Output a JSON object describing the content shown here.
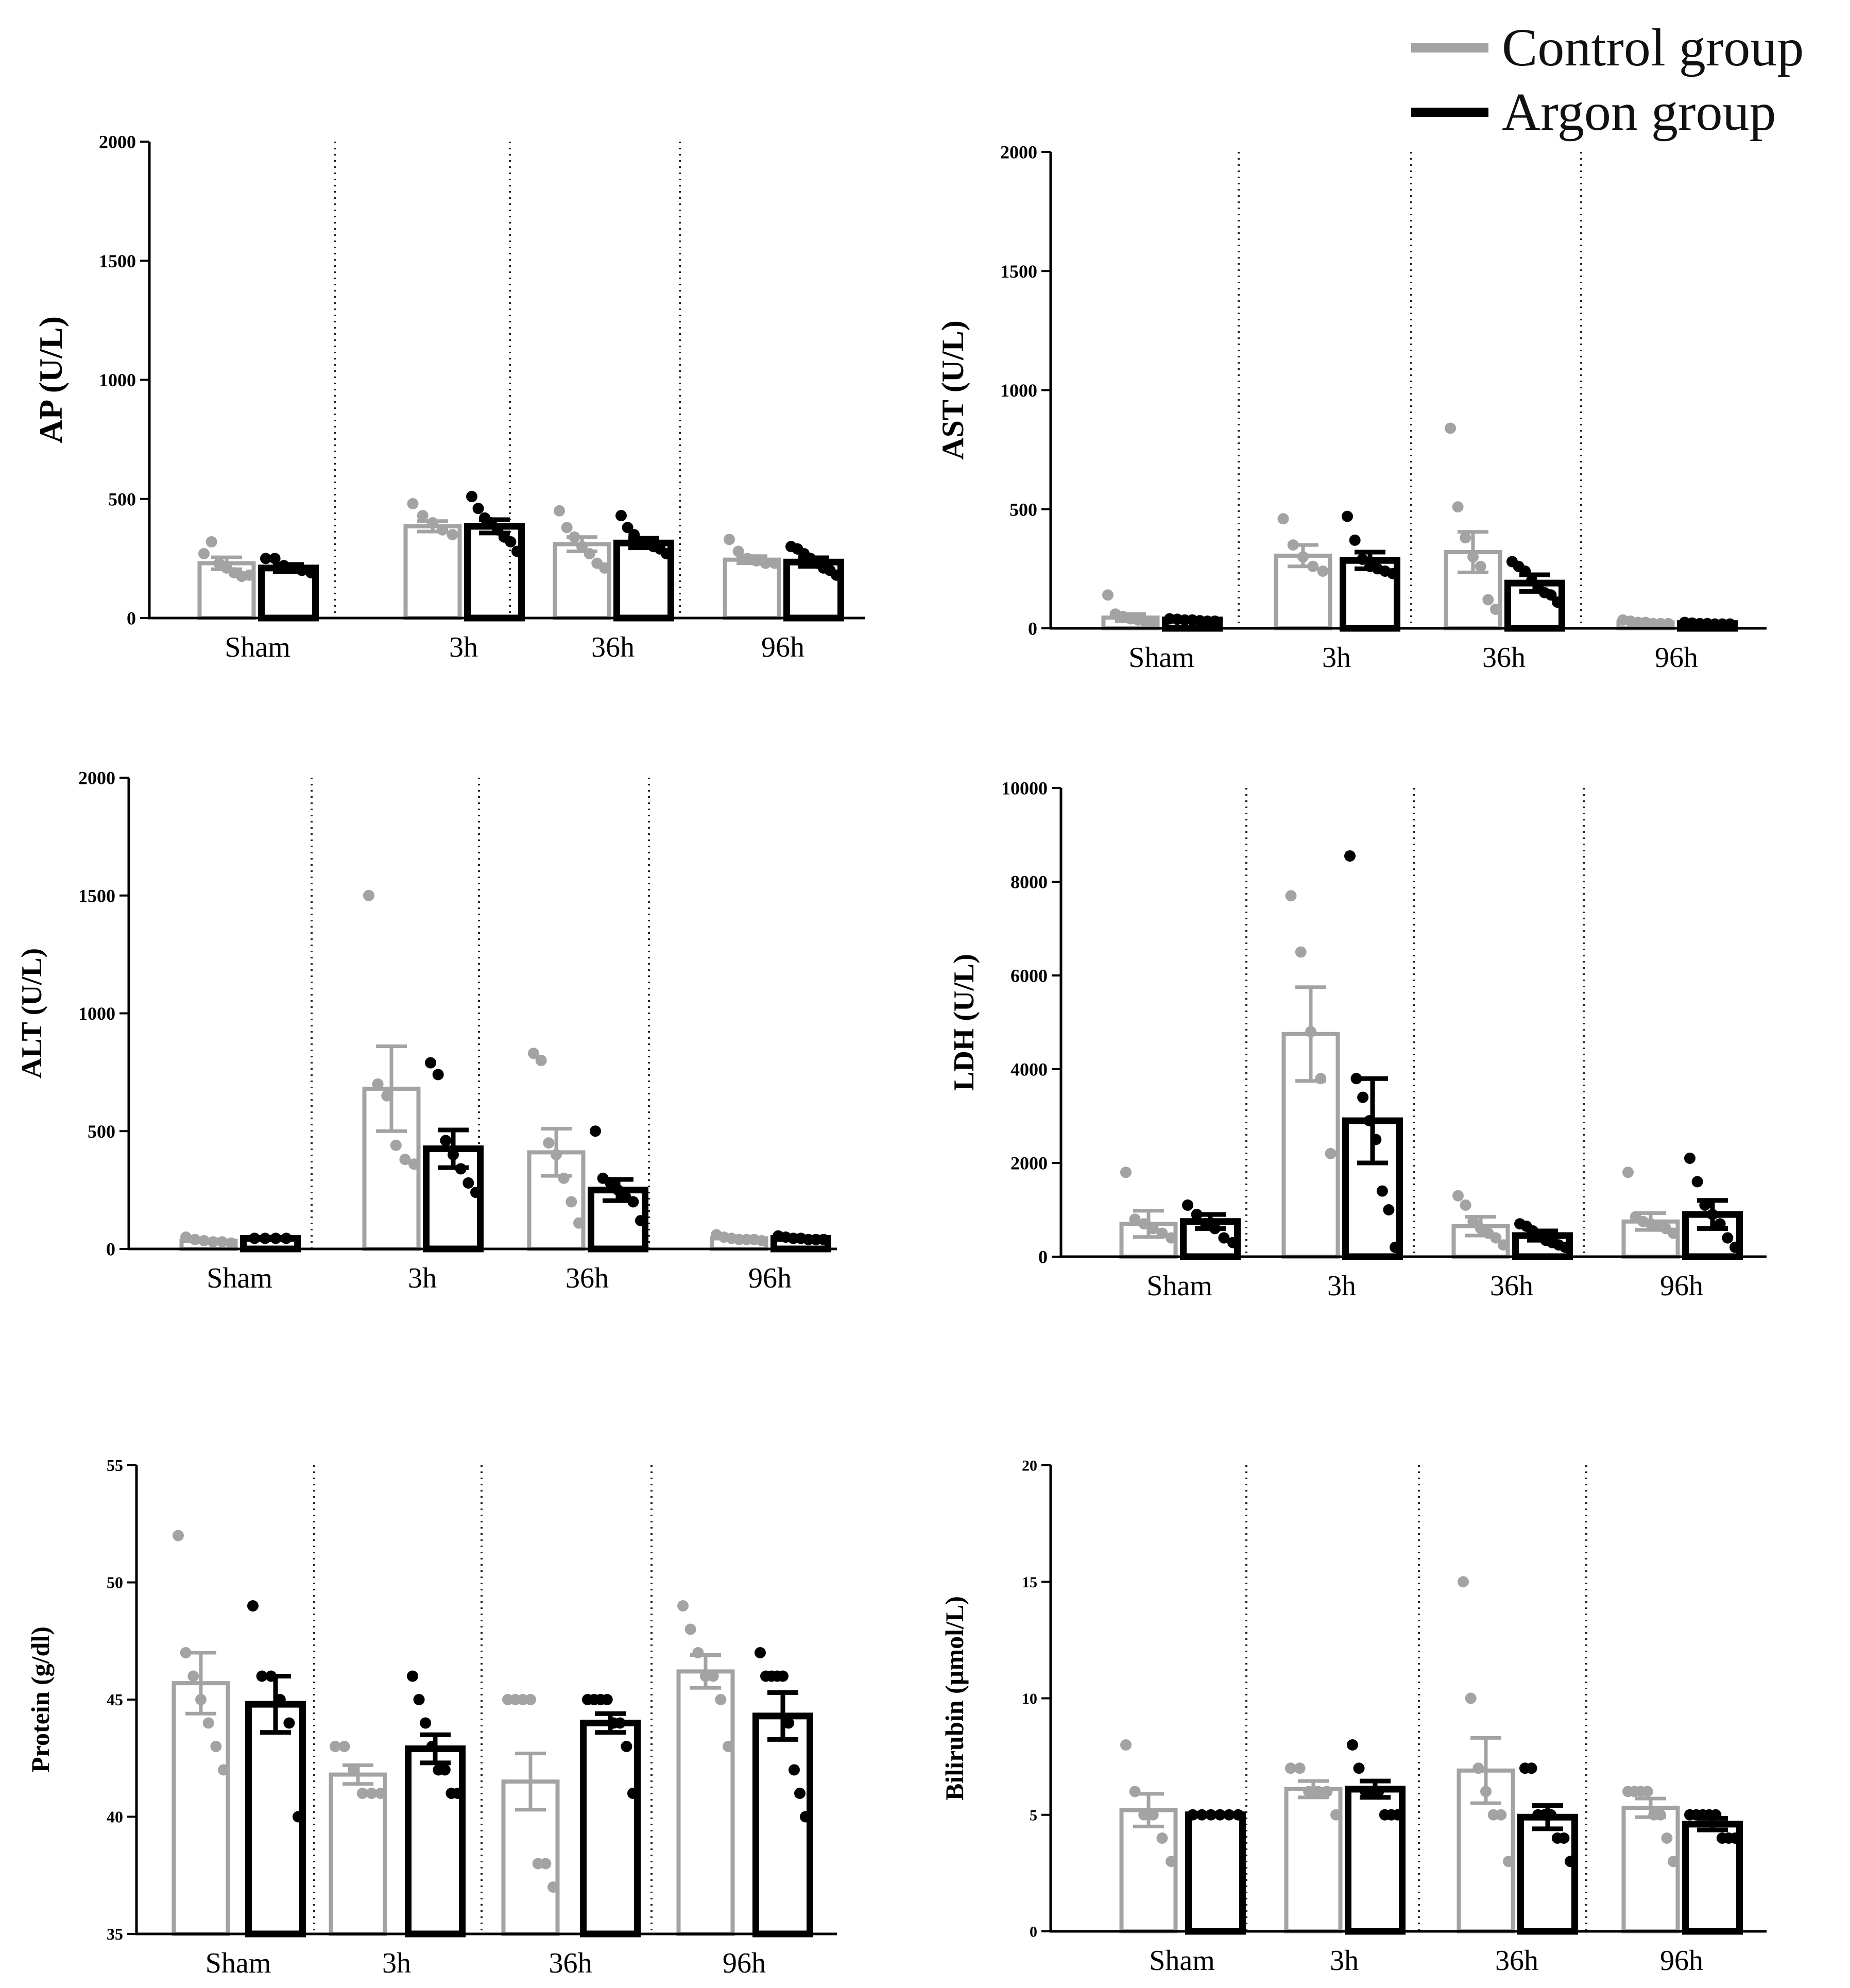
{
  "colors": {
    "control": "#a3a3a3",
    "argon": "#000000"
  },
  "legend": {
    "items": [
      {
        "label": "Control group",
        "color": "#a3a3a3"
      },
      {
        "label": "Argon group",
        "color": "#000000"
      }
    ]
  },
  "chart_data": [
    {
      "type": "bar",
      "ylabel": "AP (U/L)",
      "ylim": [
        0,
        2000
      ],
      "yticks": [
        0,
        500,
        1000,
        1500,
        2000
      ],
      "categories": [
        "Sham",
        "3h",
        "36h",
        "96h"
      ],
      "series": [
        {
          "name": "Control group",
          "values": [
            230,
            385,
            310,
            245
          ],
          "sem": [
            25,
            22,
            30,
            15
          ],
          "points": [
            [
              270,
              320,
              230,
              210,
              190,
              175,
              180
            ],
            [
              480,
              430,
              400,
              370,
              350
            ],
            [
              450,
              380,
              340,
              300,
              270,
              230,
              210
            ],
            [
              330,
              280,
              250,
              240,
              230,
              230
            ]
          ]
        },
        {
          "name": "Argon group",
          "values": [
            210,
            385,
            315,
            235
          ],
          "sem": [
            15,
            28,
            20,
            18
          ],
          "points": [
            [
              250,
              250,
              220,
              210,
              200,
              190
            ],
            [
              510,
              460,
              420,
              400,
              370,
              340,
              320,
              280
            ],
            [
              430,
              380,
              350,
              320,
              310,
              300,
              290,
              270
            ],
            [
              300,
              290,
              270,
              250,
              230,
              210,
              200,
              180
            ]
          ]
        }
      ]
    },
    {
      "type": "bar",
      "ylabel": "AST (U/L)",
      "ylim": [
        0,
        2000
      ],
      "yticks": [
        0,
        500,
        1000,
        1500,
        2000
      ],
      "categories": [
        "Sham",
        "3h",
        "36h",
        "96h"
      ],
      "series": [
        {
          "name": "Control group",
          "values": [
            45,
            305,
            320,
            25
          ],
          "sem": [
            15,
            45,
            85,
            4
          ],
          "points": [
            [
              140,
              60,
              50,
              40,
              35,
              25,
              20
            ],
            [
              460,
              350,
              300,
              260,
              240
            ],
            [
              840,
              510,
              380,
              300,
              260,
              120,
              80
            ],
            [
              35,
              30,
              25,
              25,
              20,
              20,
              20
            ]
          ]
        },
        {
          "name": "Argon group",
          "values": [
            35,
            285,
            190,
            20
          ],
          "sem": [
            3,
            35,
            35,
            3
          ],
          "points": [
            [
              40,
              38,
              35,
              35,
              32,
              30,
              30
            ],
            [
              470,
              370,
              290,
              260,
              250,
              240,
              230
            ],
            [
              280,
              260,
              240,
              200,
              180,
              150,
              140,
              110
            ],
            [
              25,
              22,
              20,
              20,
              18,
              18,
              18
            ]
          ]
        }
      ]
    },
    {
      "type": "bar",
      "ylabel": "ALT (U/L)",
      "ylim": [
        0,
        2000
      ],
      "yticks": [
        0,
        500,
        1000,
        1500,
        2000
      ],
      "categories": [
        "Sham",
        "3h",
        "36h",
        "96h"
      ],
      "series": [
        {
          "name": "Control group",
          "values": [
            35,
            680,
            410,
            45
          ],
          "sem": [
            6,
            180,
            100,
            6
          ],
          "points": [
            [
              50,
              40,
              35,
              30,
              30,
              25
            ],
            [
              1500,
              700,
              650,
              440,
              380,
              360
            ],
            [
              830,
              800,
              450,
              400,
              300,
              200,
              110
            ],
            [
              60,
              50,
              45,
              40,
              40,
              40,
              35
            ]
          ]
        },
        {
          "name": "Argon group",
          "values": [
            45,
            425,
            250,
            45
          ],
          "sem": [
            2,
            80,
            45,
            4
          ],
          "points": [
            [
              45,
              45,
              45,
              45
            ],
            [
              790,
              740,
              460,
              400,
              340,
              280,
              240
            ],
            [
              500,
              300,
              280,
              250,
              220,
              200,
              120
            ],
            [
              55,
              50,
              45,
              45,
              40,
              40,
              40
            ]
          ]
        }
      ]
    },
    {
      "type": "bar",
      "ylabel": "LDH (U/L)",
      "ylim": [
        0,
        10000
      ],
      "yticks": [
        0,
        2000,
        4000,
        6000,
        8000,
        10000
      ],
      "categories": [
        "Sham",
        "3h",
        "36h",
        "96h"
      ],
      "series": [
        {
          "name": "Control group",
          "values": [
            700,
            4750,
            650,
            750
          ],
          "sem": [
            280,
            1000,
            200,
            180
          ],
          "points": [
            [
              1800,
              800,
              700,
              600,
              500,
              400
            ],
            [
              7700,
              6500,
              4800,
              3800,
              2200
            ],
            [
              1300,
              1100,
              750,
              600,
              500,
              400,
              250
            ],
            [
              1800,
              850,
              750,
              700,
              650,
              600,
              500
            ]
          ]
        },
        {
          "name": "Argon group",
          "values": [
            750,
            2900,
            450,
            900
          ],
          "sem": [
            150,
            900,
            100,
            300
          ],
          "points": [
            [
              1100,
              900,
              700,
              600,
              400,
              300
            ],
            [
              8550,
              3800,
              3400,
              2900,
              2500,
              1400,
              1000,
              200
            ],
            [
              700,
              650,
              550,
              450,
              350,
              300,
              250,
              200
            ],
            [
              2100,
              1600,
              1100,
              900,
              700,
              400,
              200
            ]
          ]
        }
      ]
    },
    {
      "type": "bar",
      "ylabel": "Protein (g/dl)",
      "ylim": [
        35,
        55
      ],
      "yticks": [
        35,
        40,
        45,
        50,
        55
      ],
      "categories": [
        "Sham",
        "3h",
        "36h",
        "96h"
      ],
      "series": [
        {
          "name": "Control group",
          "values": [
            45.7,
            41.8,
            41.5,
            46.2
          ],
          "sem": [
            1.3,
            0.4,
            1.2,
            0.7
          ],
          "points": [
            [
              52,
              47,
              46,
              45,
              44,
              43,
              42
            ],
            [
              43,
              43,
              42,
              41,
              41,
              41
            ],
            [
              45,
              45,
              45,
              45,
              38,
              38,
              37
            ],
            [
              49,
              48,
              47,
              46,
              46,
              45,
              43
            ]
          ]
        },
        {
          "name": "Argon group",
          "values": [
            44.8,
            42.9,
            44.0,
            44.3
          ],
          "sem": [
            1.2,
            0.6,
            0.4,
            1.0
          ],
          "points": [
            [
              49,
              46,
              46,
              45,
              44,
              40
            ],
            [
              46,
              45,
              44,
              43,
              42,
              42,
              41,
              41
            ],
            [
              45,
              45,
              45,
              45,
              44,
              44,
              43,
              41
            ],
            [
              47,
              46,
              46,
              46,
              46,
              44,
              42,
              41,
              40
            ]
          ]
        }
      ]
    },
    {
      "type": "bar",
      "ylabel": "Bilirubin (µmol/L)",
      "ylim": [
        0,
        20
      ],
      "yticks": [
        0,
        5,
        10,
        15,
        20
      ],
      "categories": [
        "Sham",
        "3h",
        "36h",
        "96h"
      ],
      "series": [
        {
          "name": "Control group",
          "values": [
            5.2,
            6.1,
            6.9,
            5.3
          ],
          "sem": [
            0.7,
            0.35,
            1.4,
            0.4
          ],
          "points": [
            [
              8,
              6,
              5,
              5,
              4,
              3
            ],
            [
              7,
              7,
              6,
              6,
              6,
              5
            ],
            [
              15,
              10,
              7,
              6,
              5,
              5,
              3
            ],
            [
              6,
              6,
              6,
              6,
              5,
              5,
              4,
              3
            ]
          ]
        },
        {
          "name": "Argon group",
          "values": [
            5.0,
            6.1,
            4.9,
            4.6
          ],
          "sem": [
            0.05,
            0.35,
            0.5,
            0.25
          ],
          "points": [
            [
              5,
              5,
              5,
              5,
              5,
              5
            ],
            [
              8,
              7,
              6,
              6,
              6,
              5,
              5,
              5
            ],
            [
              7,
              7,
              5,
              5,
              5,
              4,
              4,
              3
            ],
            [
              5,
              5,
              5,
              5,
              5,
              4,
              4,
              4
            ]
          ]
        }
      ]
    }
  ]
}
